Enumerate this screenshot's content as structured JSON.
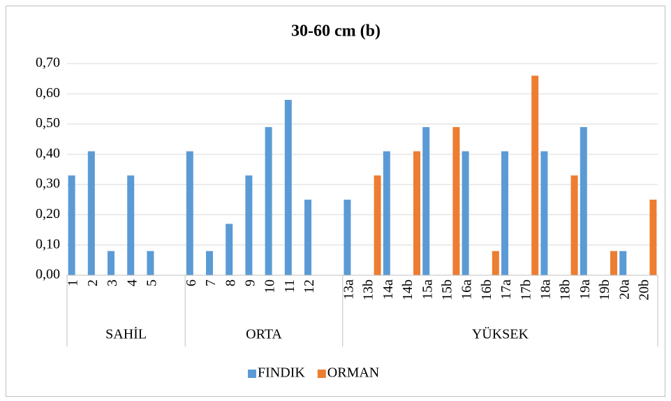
{
  "chart_data": {
    "type": "bar",
    "title": "30-60 cm  (b)",
    "groups": [
      {
        "label": "SAHİL",
        "categories": [
          "1",
          "2",
          "3",
          "4",
          "5",
          null
        ]
      },
      {
        "label": "ORTA",
        "categories": [
          "6",
          "7",
          "8",
          "9",
          "10",
          "11",
          "12",
          null
        ]
      },
      {
        "label": "YÜKSEK",
        "categories": [
          "13a",
          "13b",
          "14a",
          "14b",
          "15a",
          "15b",
          "16a",
          "16b",
          "17a",
          "17b",
          "18a",
          "18b",
          "19a",
          "19b",
          "20a",
          "20b"
        ]
      }
    ],
    "series": [
      {
        "name": "FINDIK",
        "color": "#5b9bd5",
        "values": [
          0.33,
          0.41,
          0.08,
          0.33,
          0.08,
          null,
          0.41,
          0.08,
          0.17,
          0.33,
          0.49,
          0.58,
          0.25,
          null,
          0.25,
          null,
          0.41,
          null,
          0.49,
          null,
          0.41,
          null,
          0.41,
          null,
          0.41,
          null,
          0.49,
          null,
          0.08,
          null
        ]
      },
      {
        "name": "ORMAN",
        "color": "#ed7d31",
        "values": [
          null,
          null,
          null,
          null,
          null,
          null,
          null,
          null,
          null,
          null,
          null,
          null,
          null,
          null,
          null,
          0.33,
          null,
          0.41,
          null,
          0.49,
          null,
          0.08,
          null,
          0.66,
          null,
          0.33,
          null,
          0.08,
          null,
          0.25
        ]
      }
    ],
    "ylim": [
      0,
      0.7
    ],
    "yticks": [
      {
        "value": 0,
        "label": "0,00"
      },
      {
        "value": 0.1,
        "label": "0,10"
      },
      {
        "value": 0.2,
        "label": "0,20"
      },
      {
        "value": 0.3,
        "label": "0,30"
      },
      {
        "value": 0.4,
        "label": "0,40"
      },
      {
        "value": 0.5,
        "label": "0,50"
      },
      {
        "value": 0.6,
        "label": "0,60"
      },
      {
        "value": 0.7,
        "label": "0,70"
      }
    ],
    "grid": true,
    "legend": "bottom"
  }
}
